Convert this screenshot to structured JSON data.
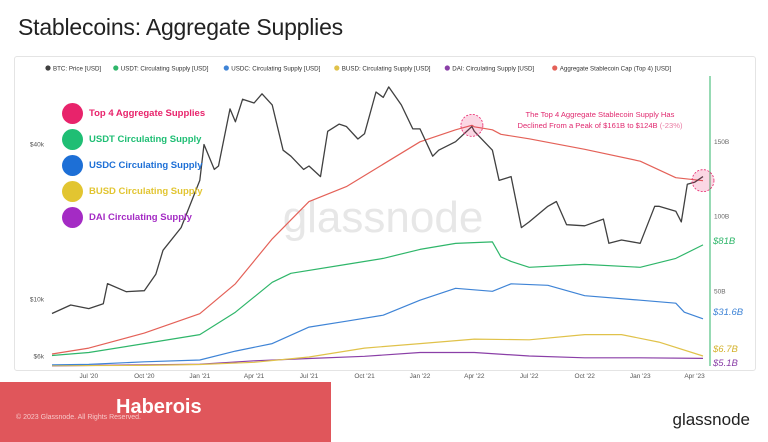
{
  "page": {
    "title": "Stablecoins: Aggregate Supplies",
    "copyright": "© 2023 Glassnode. All Rights Reserved.",
    "banner": "Haberois",
    "brand": "glassnode",
    "watermark": "glassnode"
  },
  "chart_data": {
    "type": "line",
    "title": "Stablecoins: Aggregate Supplies",
    "top_legend": [
      {
        "label": "BTC: Price [USD]",
        "color": "#404040"
      },
      {
        "label": "USDT: Circulating Supply [USD]",
        "color": "#2fb66a"
      },
      {
        "label": "USDC: Circulating Supply [USD]",
        "color": "#3f84d6"
      },
      {
        "label": "BUSD: Circulating Supply [USD]",
        "color": "#e0c24a"
      },
      {
        "label": "DAI: Circulating Supply [USD]",
        "color": "#8a3fa7"
      },
      {
        "label": "Aggregate Stablecoin Cap (Top 4) [USD]",
        "color": "#e46158"
      }
    ],
    "side_legend": [
      {
        "label": "Top 4 Aggregate Supplies",
        "color": "#e8236b"
      },
      {
        "label": "USDT Circulating Supply",
        "color": "#1fbe74"
      },
      {
        "label": "USDC Circulating Supply",
        "color": "#1d6fd6"
      },
      {
        "label": "BUSD Circulating Supply",
        "color": "#e2c531"
      },
      {
        "label": "DAI Circulating Supply",
        "color": "#a42bc4"
      }
    ],
    "x_ticks": [
      "Jul '20",
      "Oct '20",
      "Jan '21",
      "Apr '21",
      "Jul '21",
      "Oct '21",
      "Jan '22",
      "Apr '22",
      "Jul '22",
      "Oct '22",
      "Jan '23",
      "Apr '23"
    ],
    "x_tick_dates": [
      "2020-07",
      "2020-10",
      "2021-01",
      "2021-04",
      "2021-07",
      "2021-10",
      "2022-01",
      "2022-04",
      "2022-07",
      "2022-10",
      "2023-01",
      "2023-04"
    ],
    "y_left_ticks": [
      "$40k",
      "$10k",
      "$6k"
    ],
    "y_left_tick_values": [
      40000,
      10000,
      6000
    ],
    "y_left_scale": "log",
    "y_right_ticks": [
      "150B",
      "100B",
      "50B"
    ],
    "y_right_tick_values": [
      150,
      100,
      50
    ],
    "y_right_unit": "B USD",
    "ylim_left": [
      5500,
      70000
    ],
    "ylim_right": [
      0,
      190
    ],
    "end_labels": [
      {
        "text": "$81B",
        "series": "USDT",
        "color": "#2fb66a"
      },
      {
        "text": "$31.6B",
        "series": "USDC",
        "color": "#3f84d6"
      },
      {
        "text": "$6.7B",
        "series": "BUSD",
        "color": "#d4b22c"
      },
      {
        "text": "$5.1B",
        "series": "DAI",
        "color": "#8a3fa7"
      }
    ],
    "annotation": {
      "lines": [
        "The Top 4 Aggregate Stablecoin Supply Has",
        "Declined From a Peak of $161B to $124B"
      ],
      "suffix": "(-23%)",
      "color": "#e0296f"
    },
    "series": [
      {
        "name": "BTC: Price [USD]",
        "axis": "left",
        "color": "#404040",
        "x": [
          "2020-05",
          "2020-06",
          "2020-07",
          "2020-07-25",
          "2020-08",
          "2020-09",
          "2020-10",
          "2020-10-20",
          "2020-11",
          "2020-12",
          "2021-01",
          "2021-01-08",
          "2021-01-25",
          "2021-02",
          "2021-02-20",
          "2021-03",
          "2021-03-13",
          "2021-04",
          "2021-04-14",
          "2021-05",
          "2021-05-19",
          "2021-06",
          "2021-06-22",
          "2021-07",
          "2021-07-20",
          "2021-08",
          "2021-08-20",
          "2021-09",
          "2021-09-20",
          "2021-10",
          "2021-10-20",
          "2021-11",
          "2021-11-10",
          "2021-12",
          "2021-12-20",
          "2022-01",
          "2022-01-22",
          "2022-02",
          "2022-03",
          "2022-03-28",
          "2022-04",
          "2022-05",
          "2022-05-12",
          "2022-06",
          "2022-06-18",
          "2022-07",
          "2022-08",
          "2022-08-15",
          "2022-09",
          "2022-10",
          "2022-11",
          "2022-11-10",
          "2022-12",
          "2023-01",
          "2023-01-25",
          "2023-02",
          "2023-03",
          "2023-03-10",
          "2023-03-20",
          "2023-04",
          "2023-04-15"
        ],
        "values": [
          8800,
          9500,
          9200,
          9600,
          11500,
          10700,
          10800,
          12500,
          15500,
          19000,
          29000,
          40000,
          32000,
          33000,
          55000,
          49000,
          60000,
          58000,
          63000,
          57000,
          38000,
          36000,
          32000,
          33000,
          30000,
          45000,
          48000,
          47000,
          42000,
          44000,
          64000,
          61000,
          67000,
          57000,
          46000,
          46000,
          36000,
          38000,
          41000,
          47000,
          45000,
          38000,
          29000,
          30000,
          19000,
          20000,
          23000,
          24000,
          19500,
          19300,
          20500,
          16500,
          17000,
          16500,
          23000,
          23000,
          22000,
          20000,
          28000,
          28500,
          30000
        ]
      },
      {
        "name": "Aggregate Stablecoin Cap (Top 4) [USD]",
        "axis": "right",
        "color": "#e46158",
        "x": [
          "2020-05",
          "2020-07",
          "2020-10",
          "2021-01",
          "2021-03",
          "2021-05",
          "2021-07",
          "2021-09",
          "2021-11",
          "2022-01",
          "2022-03",
          "2022-03-28",
          "2022-04",
          "2022-05",
          "2022-05-15",
          "2022-07",
          "2022-10",
          "2023-01",
          "2023-03",
          "2023-04-15"
        ],
        "values": [
          8,
          12,
          22,
          35,
          55,
          85,
          110,
          120,
          135,
          150,
          158,
          161,
          160,
          158,
          155,
          152,
          145,
          137,
          126,
          124
        ]
      },
      {
        "name": "USDT: Circulating Supply [USD]",
        "axis": "right",
        "color": "#2fb66a",
        "x": [
          "2020-05",
          "2020-07",
          "2020-10",
          "2021-01",
          "2021-03",
          "2021-05",
          "2021-06",
          "2021-09",
          "2021-11",
          "2022-01",
          "2022-03",
          "2022-05",
          "2022-05-15",
          "2022-06",
          "2022-07",
          "2022-10",
          "2023-01",
          "2023-03",
          "2023-04-15"
        ],
        "values": [
          7,
          9,
          15,
          21,
          36,
          56,
          62,
          68,
          72,
          78,
          82,
          83,
          73,
          70,
          66,
          68,
          66,
          72,
          81
        ]
      },
      {
        "name": "USDC: Circulating Supply [USD]",
        "axis": "right",
        "color": "#3f84d6",
        "x": [
          "2020-05",
          "2020-07",
          "2020-10",
          "2021-01",
          "2021-03",
          "2021-05",
          "2021-07",
          "2021-09",
          "2021-11",
          "2022-01",
          "2022-03",
          "2022-05",
          "2022-06",
          "2022-08",
          "2022-10",
          "2023-01",
          "2023-03",
          "2023-03-15",
          "2023-04-15"
        ],
        "values": [
          0.8,
          1.1,
          2.8,
          4,
          10,
          15,
          26,
          30,
          34,
          44,
          52,
          50,
          55,
          54,
          47,
          44,
          42,
          36,
          31.6
        ]
      },
      {
        "name": "BUSD: Circulating Supply [USD]",
        "axis": "right",
        "color": "#e0c24a",
        "x": [
          "2020-05",
          "2020-10",
          "2021-01",
          "2021-04",
          "2021-07",
          "2021-10",
          "2022-01",
          "2022-04",
          "2022-07",
          "2022-10",
          "2022-12",
          "2023-02",
          "2023-04-15"
        ],
        "values": [
          0.2,
          0.4,
          1,
          2.5,
          6,
          12,
          15,
          18,
          17.5,
          21,
          21,
          16,
          6.7
        ]
      },
      {
        "name": "DAI: Circulating Supply [USD]",
        "axis": "right",
        "color": "#8a3fa7",
        "x": [
          "2020-05",
          "2020-10",
          "2021-01",
          "2021-04",
          "2021-07",
          "2021-10",
          "2022-01",
          "2022-04",
          "2022-07",
          "2022-10",
          "2023-01",
          "2023-04-15"
        ],
        "values": [
          0.1,
          0.8,
          1.2,
          3.5,
          5,
          6.5,
          9,
          9,
          6.7,
          5.5,
          5.5,
          5.1
        ]
      }
    ]
  }
}
